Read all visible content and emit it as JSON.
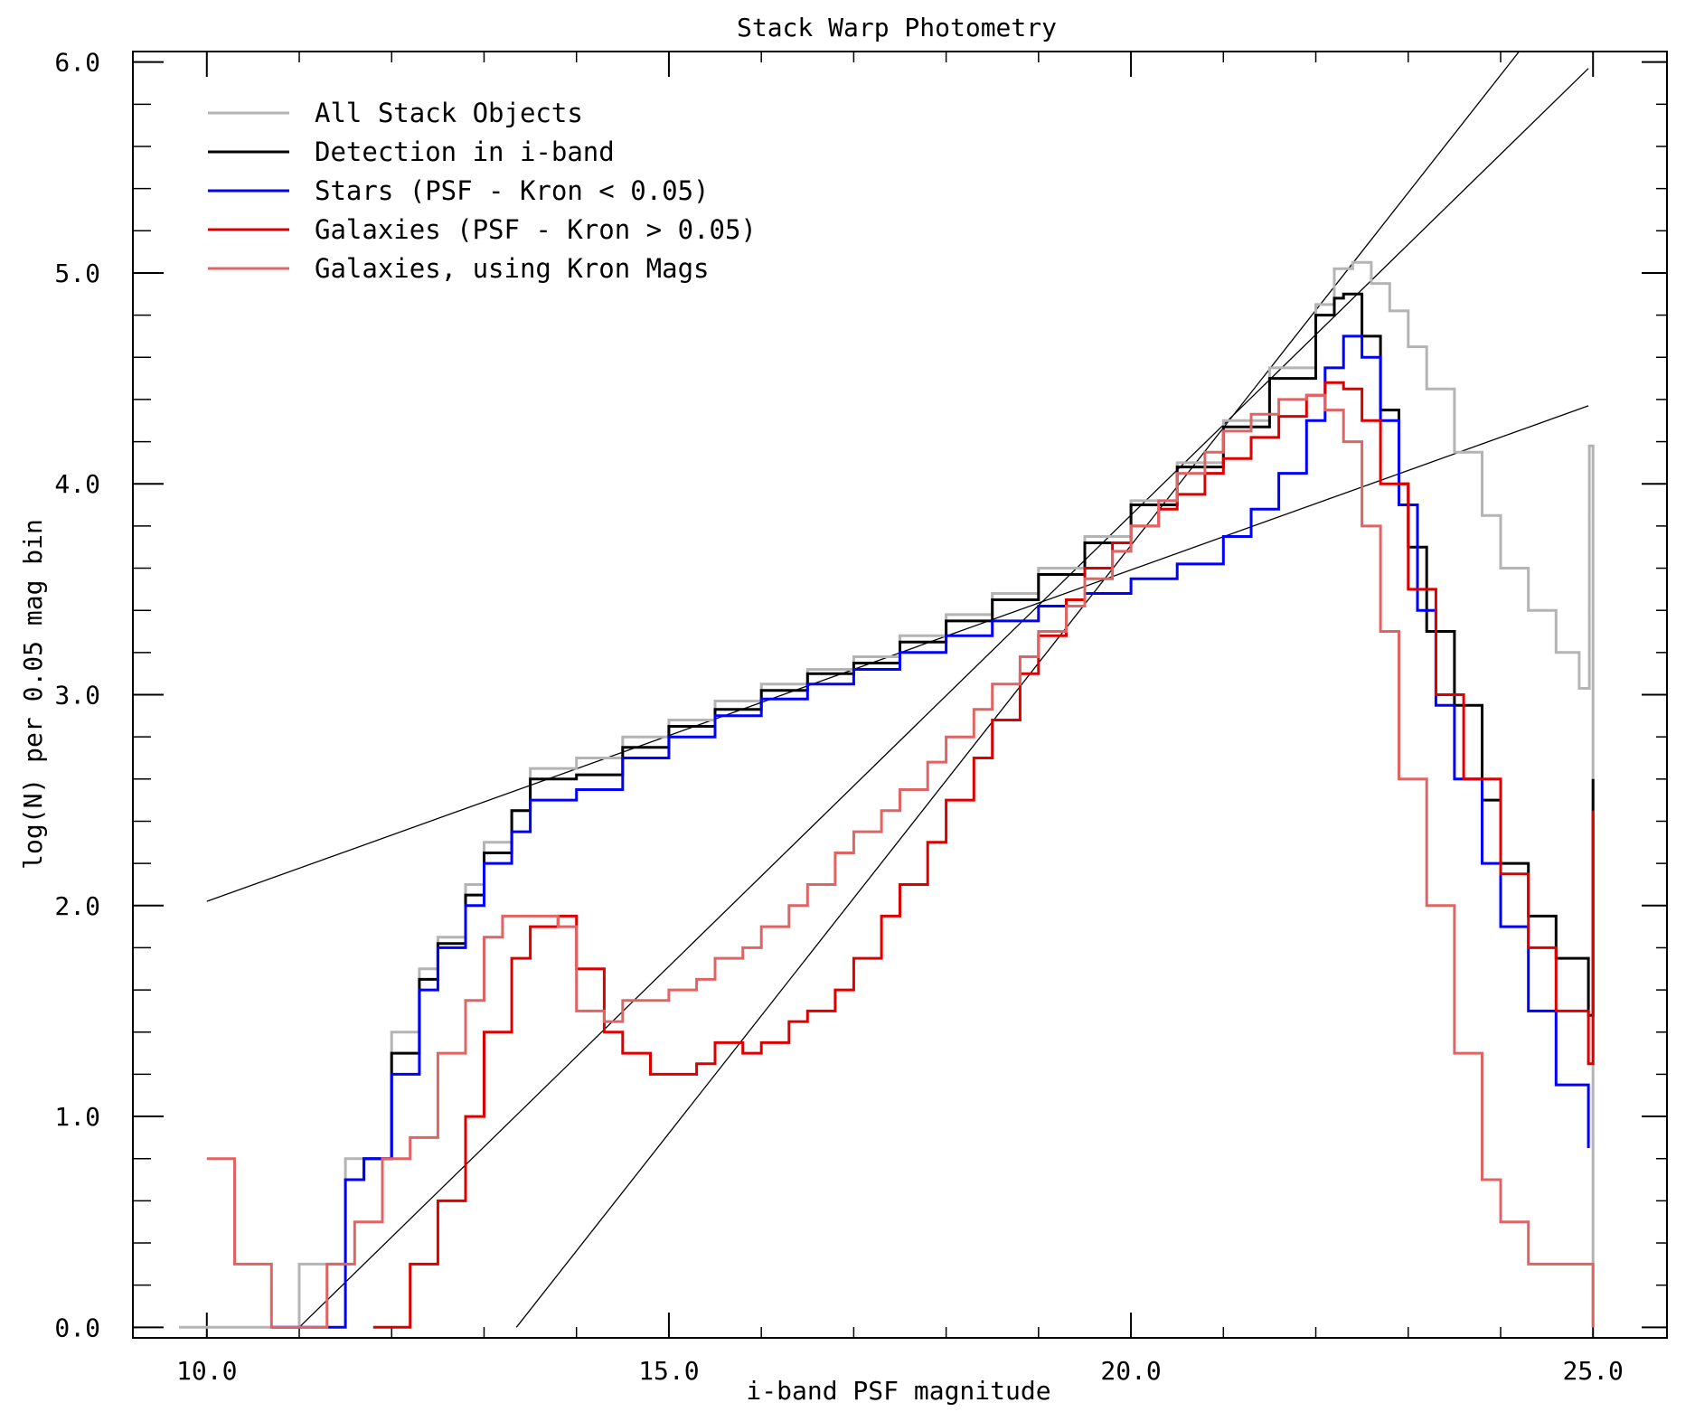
{
  "chart_data": {
    "type": "line",
    "title": "Stack Warp Photometry",
    "xlabel": "i-band PSF magnitude",
    "ylabel": "log(N) per 0.05 mag bin",
    "xlim": [
      9.2,
      25.8
    ],
    "ylim": [
      -0.05,
      6.05
    ],
    "xticks": [
      10,
      15,
      20,
      25
    ],
    "xtick_labels": [
      "10.0",
      "15.0",
      "20.0",
      "25.0"
    ],
    "yticks": [
      0,
      1,
      2,
      3,
      4,
      5,
      6
    ],
    "ytick_labels": [
      "0.0",
      "1.0",
      "2.0",
      "3.0",
      "4.0",
      "5.0",
      "6.0"
    ],
    "grid": false,
    "legend_position": "top-left",
    "series": [
      {
        "name": "All Stack Objects",
        "color": "#b4b4b4",
        "x": [
          9.7,
          10.0,
          10.5,
          10.9,
          11.0,
          11.3,
          11.5,
          11.7,
          12.0,
          12.3,
          12.5,
          12.8,
          13.0,
          13.3,
          13.5,
          14.0,
          14.5,
          15.0,
          15.5,
          16.0,
          16.5,
          17.0,
          17.5,
          18.0,
          18.5,
          19.0,
          19.5,
          20.0,
          20.5,
          21.0,
          21.5,
          22.0,
          22.2,
          22.4,
          22.6,
          22.8,
          23.0,
          23.2,
          23.5,
          23.8,
          24.0,
          24.3,
          24.6,
          24.85,
          24.95,
          24.96,
          25.0
        ],
        "y": [
          0.0,
          0.0,
          0.0,
          0.0,
          0.3,
          0.3,
          0.8,
          0.8,
          1.4,
          1.7,
          1.85,
          2.1,
          2.3,
          2.45,
          2.65,
          2.7,
          2.8,
          2.88,
          2.97,
          3.05,
          3.12,
          3.18,
          3.28,
          3.38,
          3.48,
          3.6,
          3.75,
          3.92,
          4.1,
          4.3,
          4.55,
          4.85,
          5.02,
          5.05,
          4.95,
          4.82,
          4.65,
          4.45,
          4.15,
          3.85,
          3.6,
          3.4,
          3.2,
          3.03,
          3.03,
          4.18,
          0.0
        ]
      },
      {
        "name": "Detection in i-band",
        "color": "#000000",
        "x": [
          11.5,
          11.7,
          12.0,
          12.3,
          12.5,
          12.8,
          13.0,
          13.3,
          13.5,
          14.0,
          14.5,
          15.0,
          15.5,
          16.0,
          16.5,
          17.0,
          17.5,
          18.0,
          18.5,
          19.0,
          19.5,
          20.0,
          20.5,
          21.0,
          21.5,
          22.0,
          22.2,
          22.3,
          22.5,
          22.7,
          22.9,
          23.0,
          23.2,
          23.5,
          23.8,
          24.0,
          24.3,
          24.6,
          24.95,
          25.0
        ],
        "y": [
          0.7,
          0.8,
          1.3,
          1.65,
          1.82,
          2.05,
          2.25,
          2.45,
          2.6,
          2.62,
          2.75,
          2.85,
          2.93,
          3.02,
          3.1,
          3.15,
          3.25,
          3.35,
          3.45,
          3.57,
          3.72,
          3.9,
          4.08,
          4.27,
          4.5,
          4.8,
          4.88,
          4.9,
          4.7,
          4.35,
          4.0,
          3.7,
          3.3,
          2.95,
          2.5,
          2.2,
          1.95,
          1.75,
          1.48,
          2.6
        ]
      },
      {
        "name": "Stars (PSF - Kron < 0.05)",
        "color": "#0000ff",
        "x": [
          10.7,
          11.0,
          11.3,
          11.5,
          11.7,
          12.0,
          12.3,
          12.5,
          12.8,
          13.0,
          13.3,
          13.5,
          14.0,
          14.5,
          15.0,
          15.5,
          16.0,
          16.5,
          17.0,
          17.5,
          18.0,
          18.5,
          19.0,
          19.5,
          20.0,
          20.5,
          21.0,
          21.3,
          21.6,
          21.9,
          22.1,
          22.3,
          22.5,
          22.7,
          22.9,
          23.1,
          23.3,
          23.5,
          23.8,
          24.0,
          24.3,
          24.6,
          24.95
        ],
        "y": [
          0.0,
          0.0,
          0.0,
          0.7,
          0.8,
          1.2,
          1.6,
          1.8,
          2.0,
          2.2,
          2.35,
          2.5,
          2.55,
          2.7,
          2.8,
          2.9,
          2.98,
          3.05,
          3.12,
          3.2,
          3.28,
          3.35,
          3.42,
          3.48,
          3.55,
          3.62,
          3.75,
          3.88,
          4.05,
          4.3,
          4.55,
          4.7,
          4.6,
          4.3,
          3.9,
          3.4,
          2.95,
          2.6,
          2.2,
          1.9,
          1.5,
          1.15,
          0.85
        ]
      },
      {
        "name": "Galaxies (PSF - Kron > 0.05)",
        "color": "#dd0000",
        "x": [
          11.8,
          12.0,
          12.2,
          12.5,
          12.8,
          13.0,
          13.3,
          13.5,
          13.8,
          14.0,
          14.3,
          14.5,
          14.8,
          15.0,
          15.3,
          15.5,
          15.8,
          16.0,
          16.3,
          16.5,
          16.8,
          17.0,
          17.3,
          17.5,
          17.8,
          18.0,
          18.3,
          18.5,
          18.8,
          19.0,
          19.3,
          19.5,
          19.8,
          20.0,
          20.3,
          20.5,
          20.8,
          21.0,
          21.3,
          21.6,
          21.9,
          22.1,
          22.3,
          22.5,
          22.7,
          23.0,
          23.3,
          23.6,
          24.0,
          24.3,
          24.6,
          24.95,
          25.0
        ],
        "y": [
          0.0,
          0.0,
          0.3,
          0.6,
          1.0,
          1.4,
          1.75,
          1.9,
          1.95,
          1.7,
          1.4,
          1.3,
          1.2,
          1.2,
          1.25,
          1.35,
          1.3,
          1.35,
          1.45,
          1.5,
          1.6,
          1.75,
          1.95,
          2.1,
          2.3,
          2.5,
          2.7,
          2.88,
          3.1,
          3.28,
          3.45,
          3.6,
          3.72,
          3.8,
          3.88,
          3.95,
          4.05,
          4.12,
          4.22,
          4.32,
          4.42,
          4.48,
          4.45,
          4.3,
          4.0,
          3.5,
          3.0,
          2.6,
          2.15,
          1.8,
          1.5,
          1.25,
          2.45
        ]
      },
      {
        "name": "Galaxies, using Kron Mags",
        "color": "#e06464",
        "x": [
          10.0,
          10.3,
          10.5,
          10.7,
          11.0,
          11.3,
          11.6,
          11.9,
          12.2,
          12.5,
          12.8,
          13.0,
          13.2,
          13.5,
          13.8,
          14.0,
          14.3,
          14.5,
          14.8,
          15.0,
          15.3,
          15.5,
          15.8,
          16.0,
          16.3,
          16.5,
          16.8,
          17.0,
          17.3,
          17.5,
          17.8,
          18.0,
          18.3,
          18.5,
          18.8,
          19.0,
          19.3,
          19.5,
          19.8,
          20.0,
          20.3,
          20.5,
          20.8,
          21.0,
          21.3,
          21.6,
          21.9,
          22.1,
          22.3,
          22.5,
          22.7,
          22.9,
          23.2,
          23.5,
          23.8,
          24.0,
          24.3,
          24.6,
          24.9,
          25.0
        ],
        "y": [
          0.8,
          0.3,
          0.3,
          0.0,
          0.0,
          0.3,
          0.5,
          0.8,
          0.9,
          1.3,
          1.55,
          1.85,
          1.95,
          1.95,
          1.9,
          1.5,
          1.45,
          1.55,
          1.55,
          1.6,
          1.65,
          1.75,
          1.8,
          1.9,
          2.0,
          2.1,
          2.25,
          2.35,
          2.45,
          2.55,
          2.68,
          2.8,
          2.93,
          3.05,
          3.18,
          3.3,
          3.42,
          3.55,
          3.68,
          3.8,
          3.92,
          4.05,
          4.15,
          4.25,
          4.33,
          4.4,
          4.42,
          4.35,
          4.2,
          3.8,
          3.3,
          2.6,
          2.0,
          1.3,
          0.7,
          0.5,
          0.3,
          0.3,
          0.3,
          0.0
        ]
      }
    ],
    "reference_lines": [
      {
        "name": "fit-line-shallow",
        "x": [
          10.0,
          24.95
        ],
        "y": [
          2.02,
          4.37
        ]
      },
      {
        "name": "fit-line-medium",
        "x": [
          11.0,
          24.95
        ],
        "y": [
          0.0,
          5.97
        ]
      },
      {
        "name": "fit-line-steep",
        "x": [
          13.35,
          24.2
        ],
        "y": [
          0.0,
          6.05
        ]
      }
    ]
  }
}
